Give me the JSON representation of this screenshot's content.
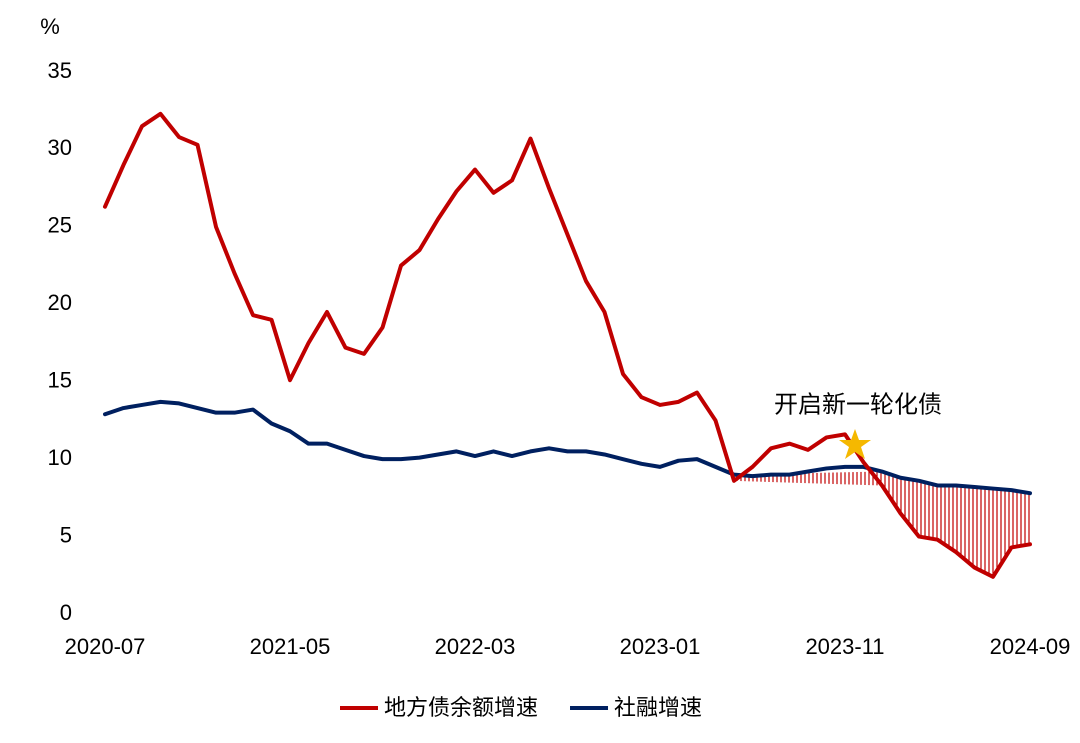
{
  "chart_data": {
    "type": "line",
    "ylabel": "%",
    "categories": [
      "2020-07",
      null,
      null,
      null,
      null,
      null,
      null,
      null,
      null,
      null,
      "2021-05",
      null,
      null,
      null,
      null,
      null,
      null,
      null,
      null,
      null,
      "2022-03",
      null,
      null,
      null,
      null,
      null,
      null,
      null,
      null,
      null,
      "2023-01",
      null,
      null,
      null,
      null,
      null,
      null,
      null,
      null,
      null,
      "2023-11",
      null,
      null,
      null,
      null,
      null,
      null,
      null,
      null,
      null,
      "2024-09"
    ],
    "series": [
      {
        "name": "地方债余额增速",
        "color": "#c00000",
        "values": [
          26.3,
          29,
          31.5,
          32.3,
          30.8,
          30.3,
          25,
          22,
          19.3,
          19,
          15.1,
          17.5,
          19.5,
          17.2,
          16.8,
          18.5,
          22.5,
          23.5,
          25.5,
          27.3,
          28.7,
          27.2,
          28,
          30.7,
          27.5,
          24.5,
          21.5,
          19.5,
          15.5,
          14,
          13.5,
          13.7,
          14.3,
          12.5,
          8.6,
          9.5,
          10.7,
          11,
          10.6,
          11.4,
          11.6,
          9.8,
          8.3,
          6.5,
          5,
          4.8,
          4,
          3,
          2.4,
          4.3,
          4.5
        ]
      },
      {
        "name": "社融增速",
        "color": "#002060",
        "values": [
          12.9,
          13.3,
          13.5,
          13.7,
          13.6,
          13.3,
          13,
          13,
          13.2,
          12.3,
          11.8,
          11,
          11,
          10.6,
          10.2,
          10,
          10,
          10.1,
          10.3,
          10.5,
          10.2,
          10.5,
          10.2,
          10.5,
          10.7,
          10.5,
          10.5,
          10.3,
          10,
          9.7,
          9.5,
          9.9,
          10,
          9.5,
          9,
          8.9,
          9,
          9,
          9.2,
          9.4,
          9.5,
          9.5,
          9.2,
          8.8,
          8.6,
          8.3,
          8.3,
          8.2,
          8.1,
          8,
          7.8
        ]
      }
    ],
    "ylim": [
      0,
      35
    ],
    "yticks": [
      0,
      5,
      10,
      15,
      20,
      25,
      30,
      35
    ],
    "annotation": "开启新一轮化债",
    "grid": false
  }
}
